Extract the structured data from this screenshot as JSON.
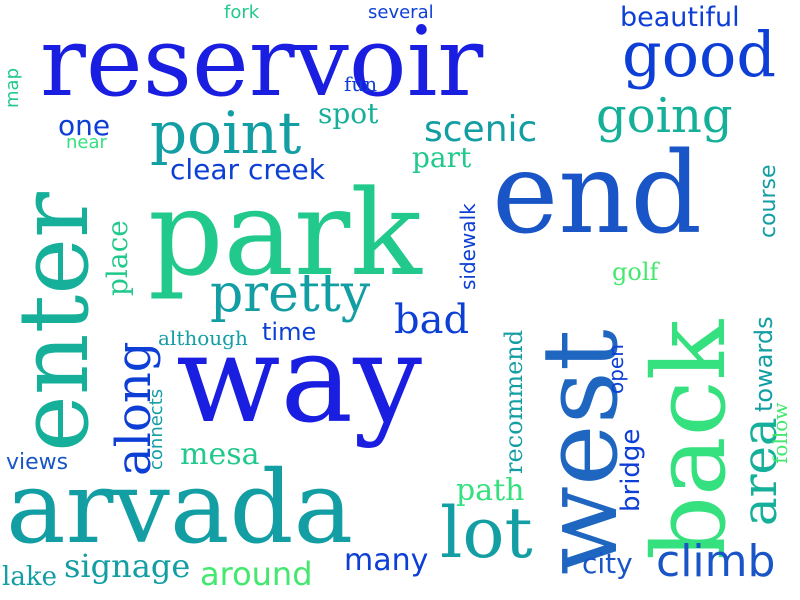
{
  "words": {
    "reservoir": "reservoir",
    "end": "end",
    "park": "park",
    "way": "way",
    "arvada": "arvada",
    "west": "west",
    "back": "back",
    "enter": "enter",
    "good": "good",
    "point": "point",
    "going": "going",
    "scenic": "scenic",
    "pretty": "pretty",
    "lot": "lot",
    "climb": "climb",
    "along": "along",
    "bad": "bad",
    "area": "area",
    "beautiful": "beautiful",
    "clear_creek": "clear creek",
    "one": "one",
    "spot": "spot",
    "part": "part",
    "time": "time",
    "although": "although",
    "fun": "fun",
    "fork": "fork",
    "several": "several",
    "map": "map",
    "near": "near",
    "place": "place",
    "sidewalk": "sidewalk",
    "course": "course",
    "golf": "golf",
    "towards": "towards",
    "open": "open",
    "recommend": "recommend",
    "bridge": "bridge",
    "follow": "follow",
    "connects": "connects",
    "mesa": "mesa",
    "views": "views",
    "path": "path",
    "many": "many",
    "city": "city",
    "lake": "lake",
    "signage": "signage",
    "around": "around"
  },
  "colors": {
    "blue_dark": "#1a1ee0",
    "blue": "#0d3fd6",
    "blue_mid": "#1955c6",
    "teal": "#139ea4",
    "teal_green": "#16b09a",
    "green": "#35e07f"
  }
}
